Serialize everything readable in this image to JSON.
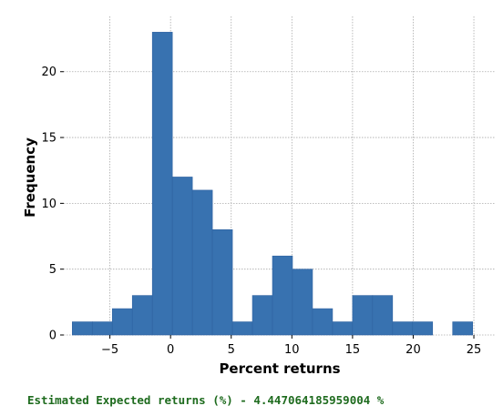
{
  "chart_data": {
    "type": "bar",
    "subtype": "histogram",
    "xlabel": "Percent returns",
    "ylabel": "Frequency",
    "xlim": [
      -8.8,
      26.8
    ],
    "ylim": [
      0,
      24.2
    ],
    "xticks": [
      -5,
      0,
      5,
      10,
      15,
      20,
      25
    ],
    "xtick_labels": [
      "−5",
      "0",
      "5",
      "10",
      "15",
      "20",
      "25"
    ],
    "yticks": [
      0,
      5,
      10,
      15,
      20
    ],
    "ytick_labels": [
      "0",
      "5",
      "10",
      "15",
      "20"
    ],
    "grid": true,
    "bar_color": "#3872b0",
    "bin_edges": [
      -8.1,
      -6.45,
      -4.8,
      -3.15,
      -1.5,
      0.15,
      1.8,
      3.45,
      5.1,
      6.75,
      8.4,
      10.05,
      11.7,
      13.35,
      15.0,
      16.65,
      18.3,
      19.95,
      21.6,
      23.25,
      24.9
    ],
    "values": [
      1,
      1,
      2,
      3,
      23,
      12,
      11,
      8,
      1,
      3,
      6,
      5,
      2,
      1,
      3,
      3,
      1,
      1,
      0,
      1
    ]
  },
  "caption": {
    "text": "Estimated Expected returns (%) - 4.447064185959004 %",
    "color": "#1e6b1e"
  }
}
